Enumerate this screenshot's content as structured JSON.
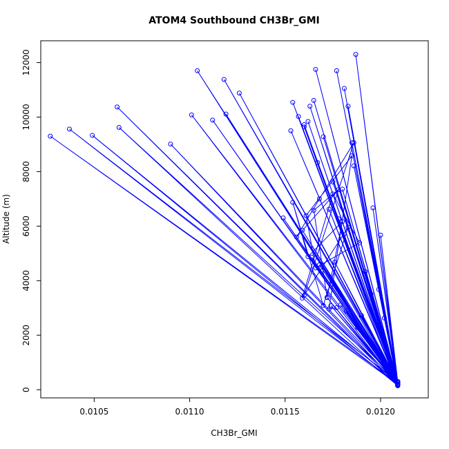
{
  "chart_data": {
    "type": "line",
    "title": "ATOM4 Southbound CH3Br_GMI",
    "xlabel": "CH3Br_GMI",
    "ylabel": "Altitude (m)",
    "xlim": [
      0.01022,
      0.01225
    ],
    "ylim": [
      -300,
      12800
    ],
    "x_ticks": [
      {
        "value": 0.0105,
        "label": "0.0105"
      },
      {
        "value": 0.011,
        "label": "0.0110"
      },
      {
        "value": 0.0115,
        "label": "0.0115"
      },
      {
        "value": 0.012,
        "label": "0.0120"
      }
    ],
    "y_ticks": [
      {
        "value": 0,
        "label": "0"
      },
      {
        "value": 2000,
        "label": "2000"
      },
      {
        "value": 4000,
        "label": "4000"
      },
      {
        "value": 6000,
        "label": "6000"
      },
      {
        "value": 8000,
        "label": "8000"
      },
      {
        "value": 10000,
        "label": "10000"
      },
      {
        "value": 12000,
        "label": "12000"
      }
    ],
    "grid": false,
    "legend": "none",
    "series_color": "#0000ff",
    "marker": "open-circle",
    "series": [
      {
        "values_x": [
          0.01209,
          0.01187,
          0.01209,
          0.01166,
          0.01209,
          0.01177,
          0.01209,
          0.01104,
          0.01209,
          0.01118,
          0.01209,
          0.01126,
          0.01209,
          0.01062,
          0.01209,
          0.01101,
          0.01209,
          0.01037,
          0.01209,
          0.01027,
          0.01209,
          0.01049,
          0.01209,
          0.01063,
          0.01209,
          0.0109,
          0.01209,
          0.01112,
          0.01209,
          0.01119,
          0.01209,
          0.01154,
          0.01209,
          0.0116,
          0.01209,
          0.01165,
          0.01209,
          0.01181,
          0.01209,
          0.01183,
          0.01209,
          0.01185,
          0.01209,
          0.01162,
          0.01209,
          0.01157,
          0.01209,
          0.01196,
          0.01209,
          0.012,
          0.01209,
          0.01153,
          0.01209,
          0.0116,
          0.01209,
          0.01149,
          0.01209,
          0.01192,
          0.01209,
          0.0117,
          0.01209,
          0.01175,
          0.01209,
          0.01163,
          0.01209,
          0.0118,
          0.01209,
          0.01178,
          0.01209,
          0.01186,
          0.01209,
          0.01173,
          0.01209,
          0.01167,
          0.01209,
          0.01164,
          0.01209,
          0.01172,
          0.01209,
          0.01159,
          0.01209,
          0.01176,
          0.01209,
          0.01182,
          0.01209,
          0.01199,
          0.01209,
          0.01195,
          0.01209,
          0.01188,
          0.01209,
          0.01174,
          0.01209,
          0.01168,
          0.01209,
          0.01179,
          0.01209,
          0.0119,
          0.01209,
          0.01202,
          0.01209
        ],
        "values_y": [
          300,
          12300,
          200,
          11750,
          250,
          11700,
          150,
          11700,
          300,
          11380,
          200,
          10880,
          250,
          10370,
          180,
          10080,
          300,
          9560,
          200,
          9300,
          250,
          9330,
          150,
          9620,
          300,
          9010,
          200,
          9890,
          250,
          10110,
          180,
          10540,
          300,
          9720,
          200,
          10610,
          250,
          11050,
          150,
          10400,
          300,
          9060,
          200,
          9840,
          250,
          10020,
          180,
          6670,
          300,
          5670,
          200,
          9500,
          250,
          9640,
          150,
          6300,
          300,
          4330,
          200,
          9280,
          250,
          7620,
          180,
          10400,
          300,
          7360,
          200,
          6270,
          250,
          8210,
          150,
          6620,
          300,
          8330,
          200,
          4860,
          250,
          3380,
          180,
          5850,
          300,
          4680,
          200,
          2880,
          250,
          3680,
          150,
          3510,
          300,
          2280,
          200,
          3080,
          250,
          4580,
          180,
          3110,
          300,
          2720,
          200,
          2630,
          300
        ]
      },
      {
        "values_x": [
          0.0116,
          0.01186,
          0.01168,
          0.01156,
          0.01178,
          0.01165,
          0.01172,
          0.0118,
          0.01162,
          0.01154,
          0.0117,
          0.01183,
          0.01159,
          0.01175,
          0.01189,
          0.01166,
          0.01161,
          0.01185,
          0.01173,
          0.01177
        ],
        "values_y": [
          3460,
          9060,
          7000,
          5600,
          7340,
          6580,
          3390,
          6170,
          4880,
          6870,
          3090,
          5960,
          3360,
          7180,
          5390,
          4470,
          6390,
          8580,
          2960,
          3010
        ]
      }
    ]
  }
}
